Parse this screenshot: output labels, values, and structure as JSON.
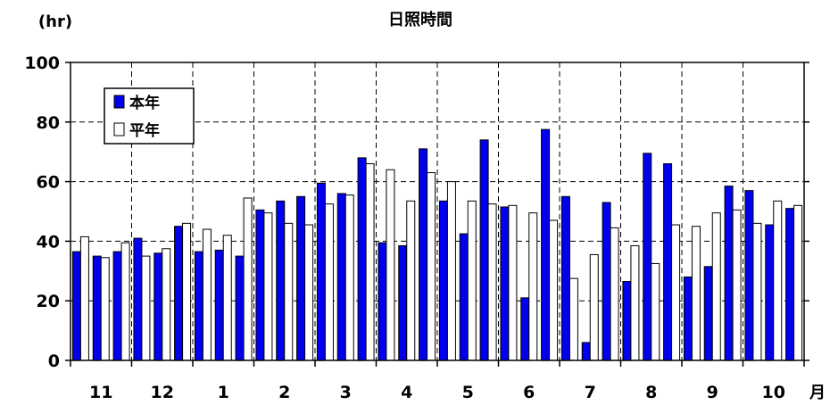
{
  "chart_data": {
    "type": "bar",
    "title": "日照時間",
    "ylabel": "(hr)",
    "xlabel": "月",
    "ylim": [
      0,
      100
    ],
    "yticks": [
      0,
      20,
      40,
      60,
      80,
      100
    ],
    "grid": true,
    "legend_position": "top-left",
    "month_labels": [
      "11",
      "12",
      "1",
      "2",
      "3",
      "4",
      "5",
      "6",
      "7",
      "8",
      "9",
      "10"
    ],
    "bars_per_month": 3,
    "series": [
      {
        "name": "本年",
        "color": "#0000ee",
        "values": [
          36.5,
          35,
          36.5,
          41,
          36,
          45,
          36.5,
          37,
          35,
          50.5,
          53.5,
          55,
          59.5,
          56,
          68,
          39.5,
          38.5,
          71,
          53.5,
          42.5,
          74,
          51.5,
          21,
          77.5,
          55,
          6,
          53,
          26.5,
          69.5,
          66,
          28,
          31.5,
          58.5,
          57,
          45.5,
          51
        ]
      },
      {
        "name": "平年",
        "color": "#ffffff",
        "values": [
          41.5,
          34.5,
          39.5,
          35,
          37.5,
          46,
          44,
          42,
          54.5,
          49.5,
          46,
          45.5,
          52.5,
          55.5,
          66,
          64,
          53.5,
          63,
          60,
          53.5,
          52.5,
          52,
          49.5,
          47,
          27.5,
          35.5,
          44.5,
          38.5,
          32.5,
          45.5,
          45,
          49.5,
          50.5,
          46,
          53.5,
          52
        ]
      }
    ]
  }
}
